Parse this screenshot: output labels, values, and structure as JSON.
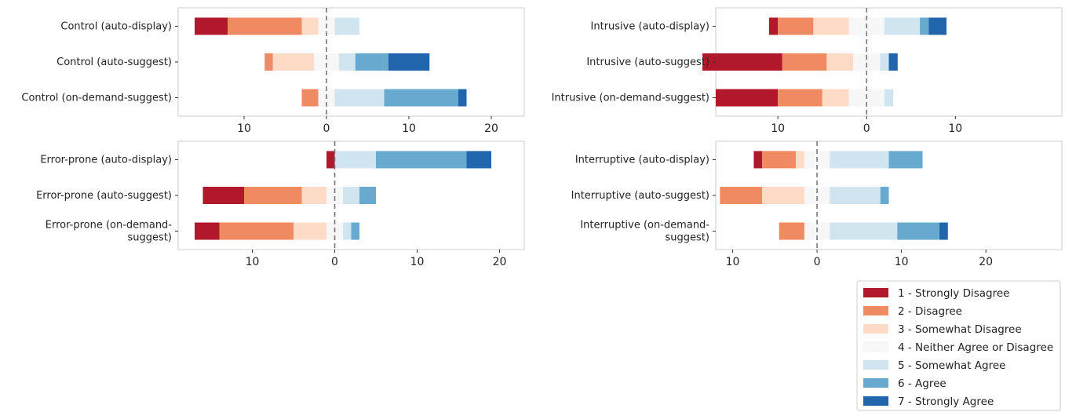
{
  "chart_data": {
    "type": "bar",
    "subtype": "diverging-stacked-horizontal",
    "legend": {
      "position": "bottom-right",
      "entries": [
        {
          "label": "1 - Strongly Disagree",
          "color": "#b2182b"
        },
        {
          "label": "2 - Disagree",
          "color": "#ef8a62"
        },
        {
          "label": "3 - Somewhat Disagree",
          "color": "#fddbc7"
        },
        {
          "label": "4 - Neither Agree or Disagree",
          "color": "#f7f7f7"
        },
        {
          "label": "5 - Somewhat Agree",
          "color": "#d1e5f0"
        },
        {
          "label": "6 - Agree",
          "color": "#67a9cf"
        },
        {
          "label": "7 - Strongly Agree",
          "color": "#2166ac"
        }
      ]
    },
    "panels": [
      {
        "xlim": [
          -18,
          24
        ],
        "ticks": [
          {
            "value": -10,
            "label": "10"
          },
          {
            "value": 0,
            "label": "0"
          },
          {
            "value": 10,
            "label": "10"
          },
          {
            "value": 20,
            "label": "20"
          }
        ],
        "rows": [
          {
            "label": "Control (auto-display)",
            "values": [
              4,
              9,
              2,
              2,
              3,
              0,
              0
            ]
          },
          {
            "label": "Control (auto-suggest)",
            "values": [
              0,
              1,
              5,
              3,
              2,
              4,
              5
            ]
          },
          {
            "label": "Control (on-demand-suggest)",
            "values": [
              0,
              2,
              0,
              2,
              6,
              9,
              1
            ]
          }
        ]
      },
      {
        "xlim": [
          -17,
          22
        ],
        "ticks": [
          {
            "value": -10,
            "label": "10"
          },
          {
            "value": 0,
            "label": "0"
          },
          {
            "value": 10,
            "label": "10"
          }
        ],
        "rows": [
          {
            "label": "Intrusive (auto-display)",
            "values": [
              1,
              4,
              4,
              4,
              4,
              1,
              2
            ]
          },
          {
            "label": "Intrusive (auto-suggest)",
            "values": [
              9,
              5,
              3,
              3,
              1,
              0,
              1
            ]
          },
          {
            "label": "Intrusive (on-demand-suggest)",
            "values": [
              7,
              5,
              3,
              4,
              1,
              0,
              0
            ]
          }
        ]
      },
      {
        "xlim": [
          -19,
          23
        ],
        "ticks": [
          {
            "value": -10,
            "label": "10"
          },
          {
            "value": 0,
            "label": "0"
          },
          {
            "value": 10,
            "label": "10"
          },
          {
            "value": 20,
            "label": "20"
          }
        ],
        "rows": [
          {
            "label": "Error-prone (auto-display)",
            "values": [
              1,
              0,
              0,
              0,
              5,
              11,
              3
            ]
          },
          {
            "label": "Error-prone (auto-suggest)",
            "values": [
              5,
              7,
              3,
              2,
              2,
              2,
              0
            ]
          },
          {
            "label": "Error-prone (on-demand-suggest)",
            "label_lines": [
              "Error-prone (on-demand-",
              "suggest)"
            ],
            "values": [
              3,
              9,
              4,
              2,
              1,
              1,
              0
            ]
          }
        ]
      },
      {
        "xlim": [
          -12,
          29
        ],
        "ticks": [
          {
            "value": -10,
            "label": "10"
          },
          {
            "value": 0,
            "label": "0"
          },
          {
            "value": 10,
            "label": "10"
          },
          {
            "value": 20,
            "label": "20"
          }
        ],
        "rows": [
          {
            "label": "Interruptive (auto-display)",
            "values": [
              1,
              4,
              1,
              3,
              7,
              4,
              0
            ]
          },
          {
            "label": "Interruptive (auto-suggest)",
            "values": [
              0,
              5,
              5,
              3,
              6,
              1,
              0
            ]
          },
          {
            "label": "Interruptive (on-demand-suggest)",
            "label_lines": [
              "Interruptive (on-demand-",
              "suggest)"
            ],
            "values": [
              0,
              3,
              0,
              3,
              8,
              5,
              1
            ]
          }
        ]
      }
    ]
  }
}
